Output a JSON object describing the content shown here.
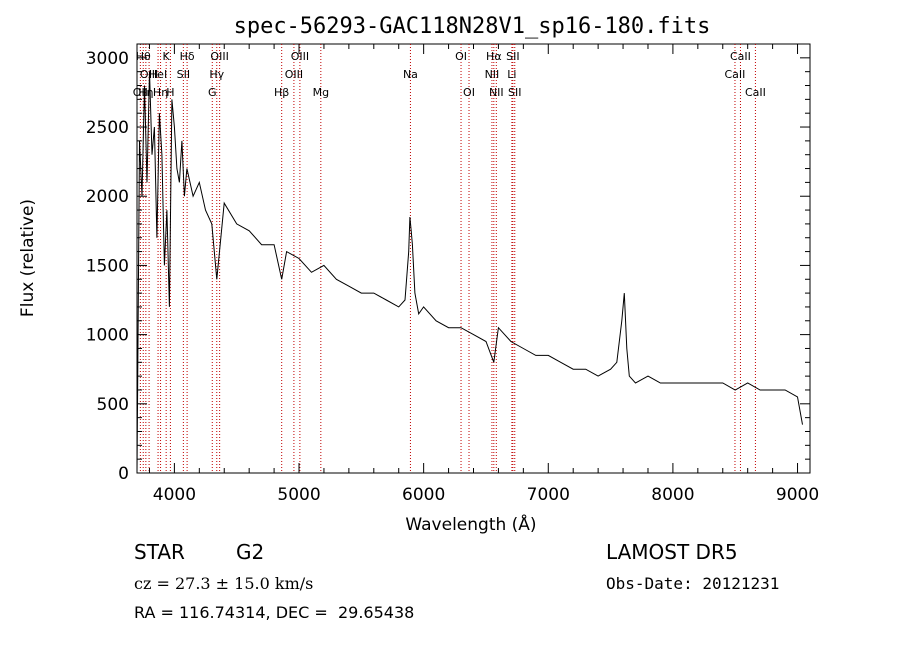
{
  "chart_data": {
    "type": "line",
    "title": "spec-56293-GAC118N28V1_sp16-180.fits",
    "xlabel": "Wavelength (Å)",
    "ylabel": "Flux (relative)",
    "xlim": [
      3700,
      9100
    ],
    "ylim": [
      0,
      3100
    ],
    "x_ticks": [
      4000,
      5000,
      6000,
      7000,
      8000,
      9000
    ],
    "y_ticks": [
      0,
      500,
      1000,
      1500,
      2000,
      2500,
      3000
    ],
    "grid": false,
    "series": [
      {
        "x": [
          3700,
          3720,
          3740,
          3760,
          3780,
          3800,
          3820,
          3840,
          3860,
          3880,
          3900,
          3920,
          3940,
          3960,
          3980,
          4000,
          4020,
          4040,
          4060,
          4080,
          4100,
          4150,
          4200,
          4250,
          4300,
          4340,
          4400,
          4500,
          4600,
          4700,
          4800,
          4861,
          4900,
          5000,
          5100,
          5200,
          5300,
          5400,
          5500,
          5600,
          5700,
          5800,
          5850,
          5880,
          5890,
          5900,
          5910,
          5930,
          5960,
          6000,
          6100,
          6200,
          6300,
          6400,
          6500,
          6563,
          6600,
          6700,
          6800,
          6900,
          7000,
          7100,
          7200,
          7300,
          7400,
          7500,
          7550,
          7590,
          7610,
          7630,
          7650,
          7700,
          7800,
          7900,
          8000,
          8100,
          8200,
          8300,
          8400,
          8500,
          8600,
          8700,
          8800,
          8900,
          9000,
          9040
        ],
        "y": [
          0,
          2400,
          2000,
          2800,
          2100,
          2900,
          2300,
          2500,
          1700,
          2600,
          2300,
          1500,
          1900,
          1200,
          2700,
          2500,
          2200,
          2100,
          2400,
          2000,
          2200,
          2000,
          2100,
          1900,
          1800,
          1400,
          1950,
          1800,
          1750,
          1650,
          1650,
          1400,
          1600,
          1550,
          1450,
          1500,
          1400,
          1350,
          1300,
          1300,
          1250,
          1200,
          1250,
          1600,
          1850,
          1750,
          1650,
          1300,
          1150,
          1200,
          1100,
          1050,
          1050,
          1000,
          950,
          800,
          1050,
          950,
          900,
          850,
          850,
          800,
          750,
          750,
          700,
          750,
          800,
          1100,
          1300,
          900,
          700,
          650,
          700,
          650,
          650,
          650,
          650,
          650,
          650,
          600,
          650,
          600,
          600,
          600,
          550,
          350
        ]
      }
    ],
    "lines": [
      {
        "x": 3727,
        "label": "OII",
        "row": 2
      },
      {
        "x": 3750,
        "label": "Hθ",
        "row": 0
      },
      {
        "x": 3771,
        "label": "Hη",
        "row": 2
      },
      {
        "x": 3797,
        "label": "OIII",
        "row": 1
      },
      {
        "x": 3869,
        "label": "HeI",
        "row": 1
      },
      {
        "x": 3889,
        "label": "Hη",
        "row": 2
      },
      {
        "x": 3934,
        "label": "K",
        "row": 0
      },
      {
        "x": 3968,
        "label": "H",
        "row": 2
      },
      {
        "x": 4072,
        "label": "SII",
        "row": 1
      },
      {
        "x": 4102,
        "label": "Hδ",
        "row": 0
      },
      {
        "x": 4304,
        "label": "G",
        "row": 2
      },
      {
        "x": 4340,
        "label": "Hγ",
        "row": 1
      },
      {
        "x": 4363,
        "label": "OIII",
        "row": 0
      },
      {
        "x": 4861,
        "label": "Hβ",
        "row": 2
      },
      {
        "x": 4959,
        "label": "OIII",
        "row": 1
      },
      {
        "x": 5007,
        "label": "OIII",
        "row": 0
      },
      {
        "x": 5175,
        "label": "Mg",
        "row": 2
      },
      {
        "x": 5894,
        "label": "Na",
        "row": 1
      },
      {
        "x": 6300,
        "label": "OI",
        "row": 0
      },
      {
        "x": 6364,
        "label": "OI",
        "row": 2
      },
      {
        "x": 6548,
        "label": "NII",
        "row": 1
      },
      {
        "x": 6563,
        "label": "Hα",
        "row": 0
      },
      {
        "x": 6583,
        "label": "NII",
        "row": 2
      },
      {
        "x": 6708,
        "label": "Li",
        "row": 1
      },
      {
        "x": 6716,
        "label": "SII",
        "row": 0
      },
      {
        "x": 6731,
        "label": "SII",
        "row": 2
      },
      {
        "x": 8498,
        "label": "CaII",
        "row": 1
      },
      {
        "x": 8542,
        "label": "CaII",
        "row": 0
      },
      {
        "x": 8662,
        "label": "CaII",
        "row": 2
      }
    ]
  },
  "info": {
    "object_class": "STAR",
    "subclass": "G2",
    "cz": "cz = 27.3 ± 15.0 km/s",
    "radec": "RA = 116.74314, DEC =  29.65438",
    "survey": "LAMOST DR5",
    "obs_date": "Obs-Date: 20121231"
  },
  "colors": {
    "spectrum": "#000000",
    "line_marker": "#c00000",
    "axes": "#000000",
    "background": "#ffffff"
  }
}
